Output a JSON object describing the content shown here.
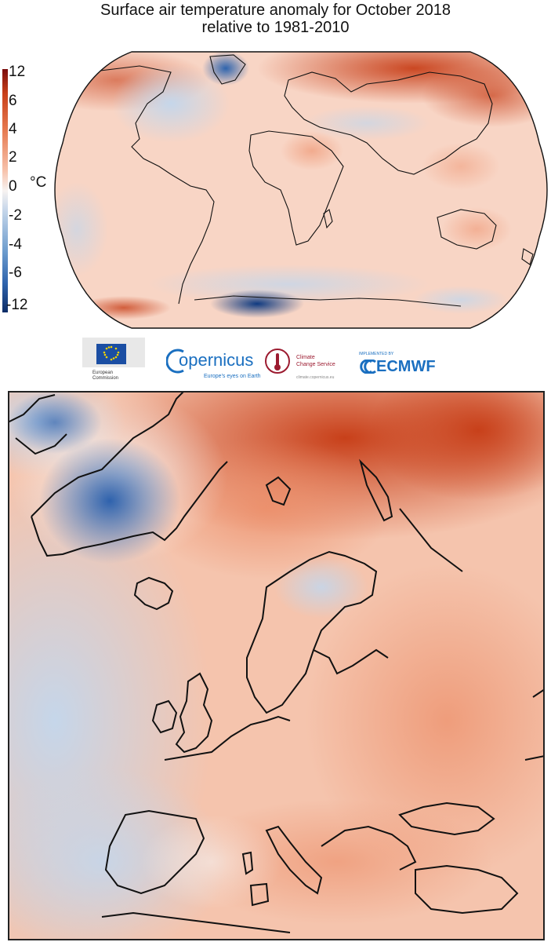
{
  "title": {
    "line1": "Surface air temperature anomaly for October 2018",
    "line2": "relative to 1981-2010"
  },
  "legend": {
    "ticks": [
      "12",
      "6",
      "4",
      "2",
      "0",
      "-2",
      "-4",
      "-6",
      "-12"
    ],
    "unit": "°C"
  },
  "logos": {
    "eu_line1": "European",
    "eu_line2": "Commission",
    "copernicus": "opernicus",
    "copernicus_tagline": "Europe's eyes on Earth",
    "c3s_line1": "Climate",
    "c3s_line2": "Change Service",
    "c3s_url": "climate.copernicus.eu",
    "ecmwf_small": "IMPLEMENTED BY",
    "ecmwf": "ECMWF"
  },
  "colors": {
    "warm_strong": "#c8401a",
    "warm_light": "#f7c3ad",
    "neutral": "#f7f3f1",
    "cold_light": "#c5d6ea",
    "cold_strong": "#2f64ad",
    "ecmwf_blue": "#1a6fc0",
    "c3s_red": "#9c1b30"
  }
}
